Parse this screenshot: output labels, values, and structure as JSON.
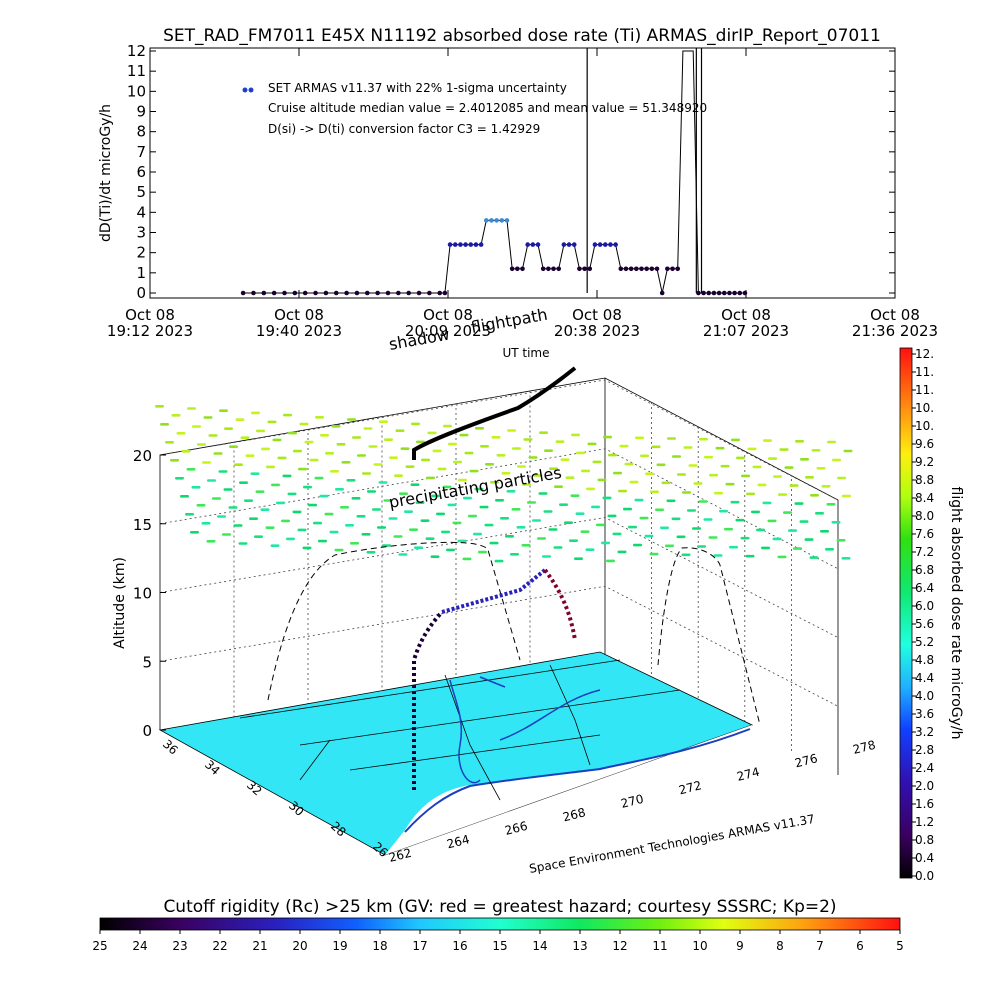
{
  "chart_data": [
    {
      "type": "scatter",
      "title": "SET_RAD_FM7011   E45X N11192 absorbed dose rate (Ti) ARMAS_dirIP_Report_07011",
      "ylabel": "dD(Ti)/dt microGy/h",
      "xlabel": "UT time",
      "ylim": [
        0,
        12
      ],
      "yticks": [
        "0",
        "1",
        "2",
        "3",
        "4",
        "5",
        "6",
        "7",
        "8",
        "9",
        "10",
        "11",
        "12"
      ],
      "xticks": [
        {
          "line1": "Oct 08",
          "line2": "19:12 2023"
        },
        {
          "line1": "Oct 08",
          "line2": "19:40 2023"
        },
        {
          "line1": "Oct 08",
          "line2": "20:09 2023"
        },
        {
          "line1": "Oct 08",
          "line2": "20:38 2023"
        },
        {
          "line1": "Oct 08",
          "line2": "21:07 2023"
        },
        {
          "line1": "Oct 08",
          "line2": "21:36 2023"
        }
      ],
      "legend": {
        "series": "SET ARMAS v11.37 with 22% 1-sigma uncertainty",
        "note1": "Cruise altitude median value = 2.4012085 and mean value = 51.348920",
        "note2": "D(si) -> D(ti) conversion factor C3 = 1.42929"
      },
      "x_minutes_after_1912": [
        18,
        20,
        22,
        24,
        26,
        28,
        30,
        32,
        34,
        36,
        38,
        40,
        42,
        44,
        46,
        48,
        50,
        52,
        54,
        56,
        57,
        58,
        59,
        60,
        61,
        62,
        63,
        64,
        65,
        66,
        67,
        68,
        69,
        70,
        71,
        72,
        73,
        74,
        75,
        76,
        77,
        78,
        79,
        80,
        81,
        82,
        83,
        84,
        85,
        86,
        87,
        88,
        89,
        90,
        91,
        92,
        93,
        94,
        95,
        96,
        97,
        98,
        99,
        100,
        101,
        102,
        103,
        104,
        105,
        106,
        107,
        108,
        109,
        110,
        111,
        112,
        113,
        114,
        115
      ],
      "y": [
        0,
        0,
        0,
        0,
        0,
        0,
        0,
        0,
        0,
        0,
        0,
        0,
        0,
        0,
        0,
        0,
        0,
        0,
        0,
        0,
        0,
        2.4,
        2.4,
        2.4,
        2.4,
        2.4,
        2.4,
        2.4,
        3.6,
        3.6,
        3.6,
        3.6,
        3.6,
        1.2,
        1.2,
        1.2,
        2.4,
        2.4,
        2.4,
        1.2,
        1.2,
        1.2,
        1.2,
        2.4,
        2.4,
        2.4,
        1.2,
        1.2,
        1.2,
        2.4,
        2.4,
        2.4,
        2.4,
        2.4,
        1.2,
        1.2,
        1.2,
        1.2,
        1.2,
        1.2,
        1.2,
        1.2,
        0,
        1.2,
        1.2,
        1.2,
        12,
        12,
        12,
        0,
        0,
        0,
        0,
        0,
        0,
        0,
        0,
        0,
        0
      ],
      "spikes_minutes_after_1912": [
        84.5,
        105.6,
        106.6
      ]
    },
    {
      "type": "scatter",
      "title": "",
      "zlabel": "Altitude (km)",
      "zticks": [
        "0",
        "5",
        "10",
        "15",
        "20"
      ],
      "lat_ticks": [
        "36",
        "34",
        "32",
        "30",
        "28",
        "26"
      ],
      "lon_ticks": [
        "262",
        "264",
        "266",
        "268",
        "270",
        "272",
        "274",
        "276",
        "278"
      ],
      "annotations": [
        "shadow",
        "flightpath",
        "precipitating particles"
      ],
      "credit": "Space Environment Technologies ARMAS v11.37",
      "colorbar_label": "flight absorbed dose rate microGy/h",
      "colorbar_ticks": [
        "12.",
        "11.",
        "11.",
        "10.",
        "10.",
        "9.6",
        "9.2",
        "8.8",
        "8.4",
        "8.0",
        "7.6",
        "7.2",
        "6.8",
        "6.4",
        "6.0",
        "5.6",
        "5.2",
        "4.8",
        "4.4",
        "4.0",
        "3.6",
        "3.2",
        "2.8",
        "2.4",
        "2.0",
        "1.6",
        "1.2",
        "0.8",
        "0.4",
        "0.0"
      ],
      "colorbar_range": [
        0,
        12
      ]
    },
    {
      "type": "heatmap",
      "title": "Cutoff rigidity (Rc) >25 km (GV: red = greatest hazard; courtesy SSSRC; Kp=2)",
      "scale_ticks": [
        "25",
        "24",
        "23",
        "22",
        "21",
        "20",
        "19",
        "18",
        "17",
        "16",
        "15",
        "14",
        "13",
        "12",
        "11",
        "10",
        "9",
        "8",
        "7",
        "6",
        "5"
      ],
      "range": [
        25,
        5
      ]
    }
  ],
  "colors": {
    "point_dark": "#1a0033",
    "point_blue": "#1a1aa8",
    "point_light": "#3a8ad8",
    "legend_dot": "#2040d0",
    "ground": "#33e6f5"
  }
}
